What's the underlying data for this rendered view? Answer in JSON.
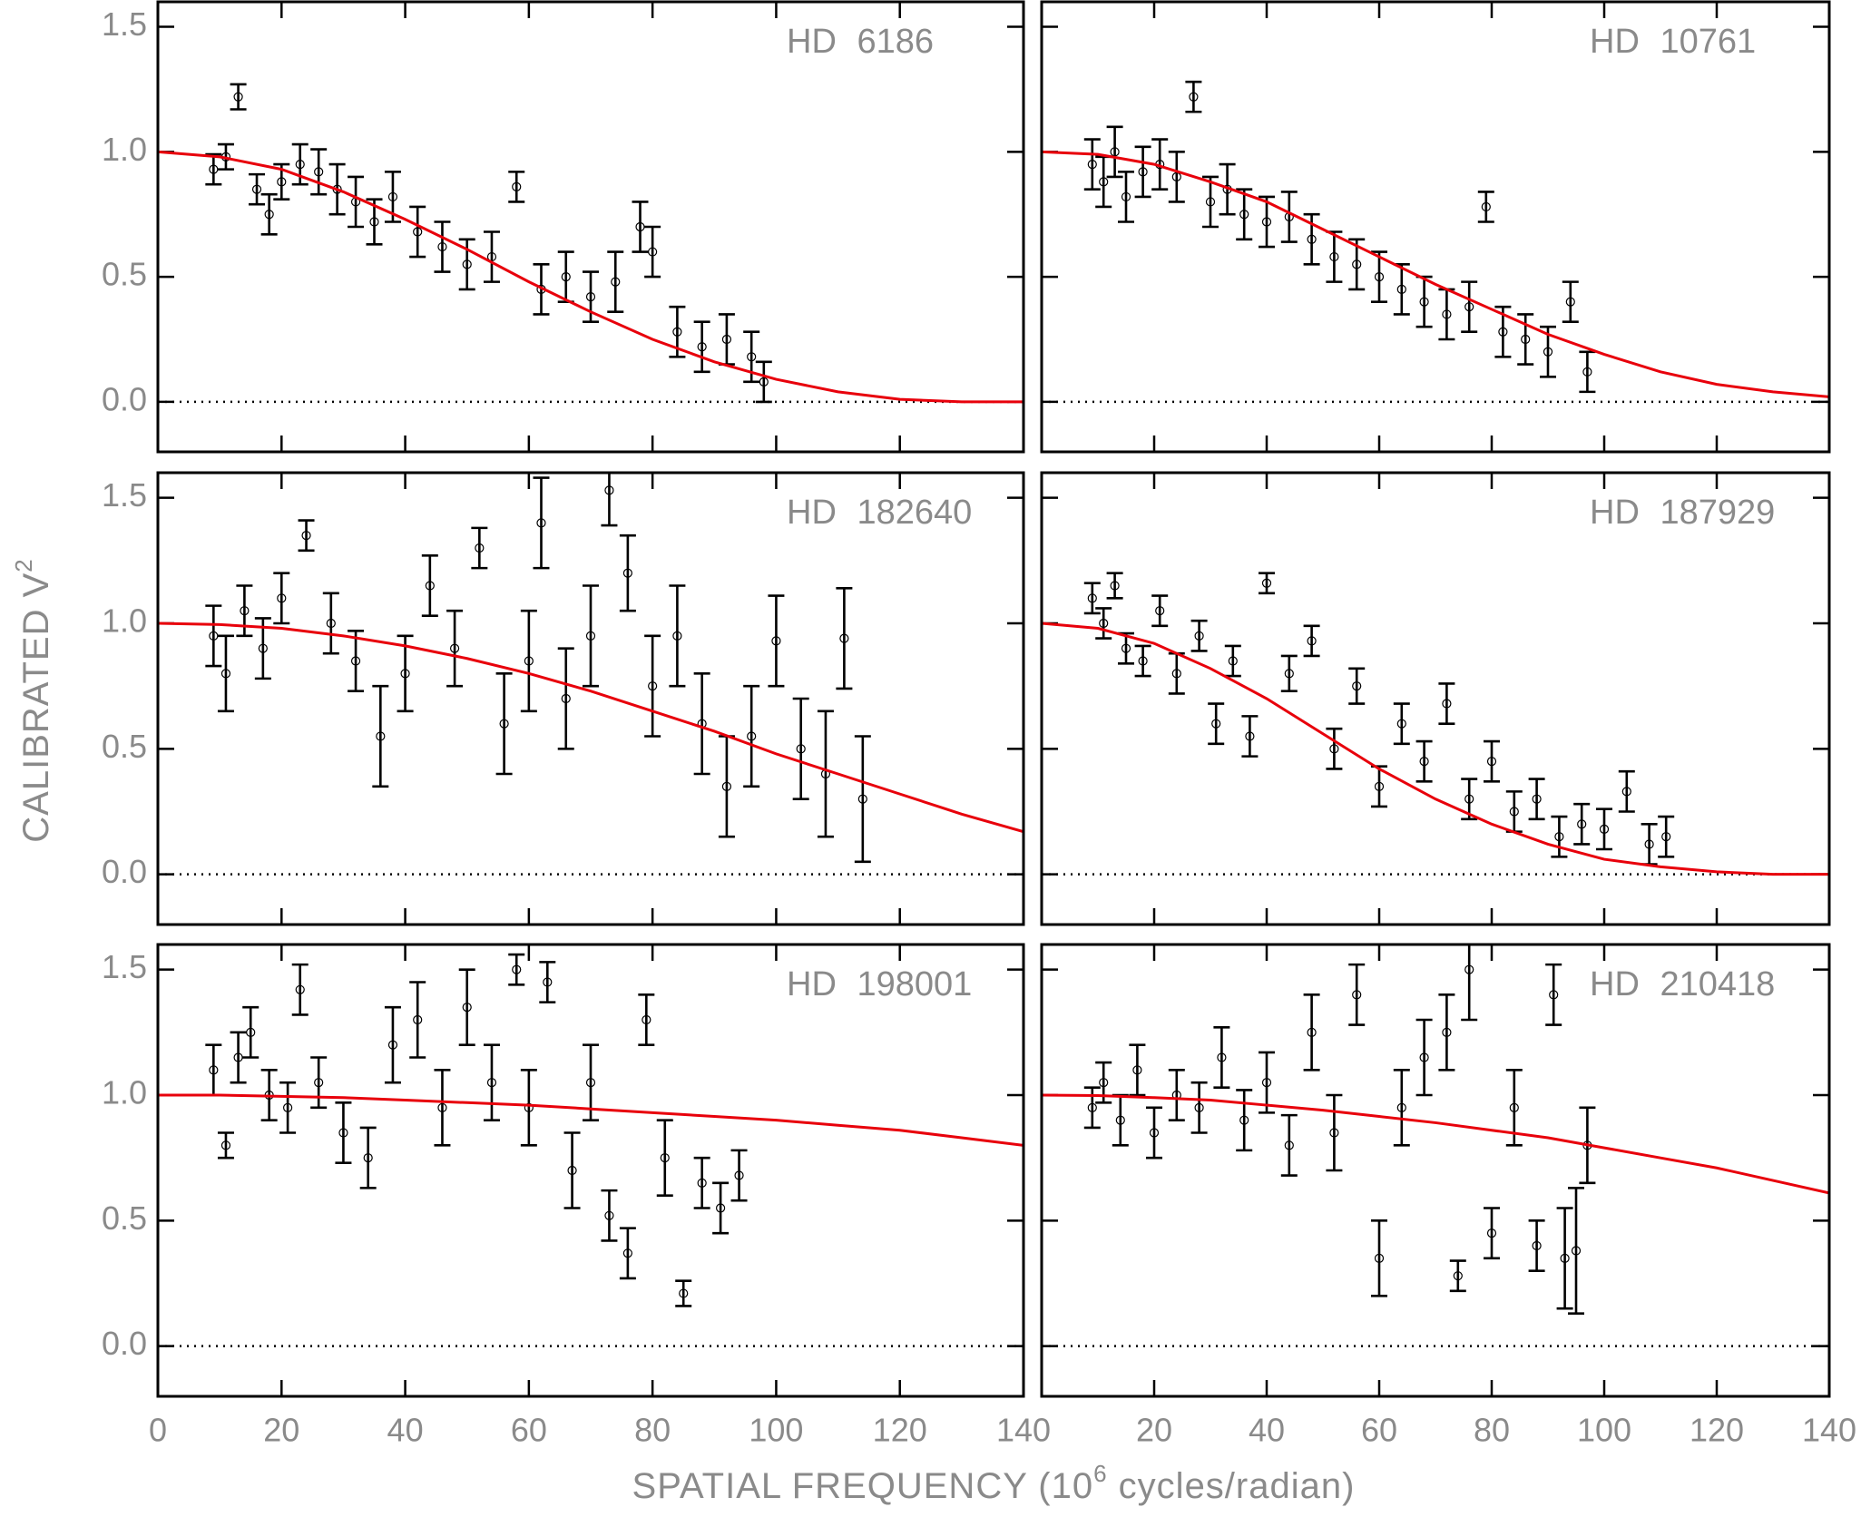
{
  "x_label": {
    "text": "SPATIAL FREQUENCY (10",
    "superscript": "6",
    "tail": " cycles/radian)"
  },
  "y_label": {
    "text": "CALIBRATED V",
    "superscript": "2"
  },
  "chart_data": [
    {
      "type": "scatter",
      "title": "HD 6186",
      "xlim": [
        0,
        140
      ],
      "ylim": [
        -0.2,
        1.6
      ],
      "xticks": [
        0,
        20,
        40,
        60,
        80,
        100,
        120,
        140
      ],
      "xtick_labels": false,
      "yticks": [
        {
          "value": 0,
          "label": "0.0"
        },
        0.5,
        {
          "value": 1,
          "label": "1.0"
        },
        1.5
      ],
      "ytick_labels": true,
      "zero_line": true,
      "color": "#000000",
      "x": [
        9,
        11,
        13,
        16,
        18,
        20,
        23,
        26,
        29,
        32,
        35,
        38,
        42,
        46,
        50,
        54,
        58,
        62,
        66,
        70,
        74,
        78,
        80,
        84,
        88,
        92,
        96,
        98
      ],
      "values": [
        0.93,
        0.98,
        1.22,
        0.85,
        0.75,
        0.88,
        0.95,
        0.92,
        0.85,
        0.8,
        0.72,
        0.82,
        0.68,
        0.62,
        0.55,
        0.58,
        0.86,
        0.45,
        0.5,
        0.42,
        0.48,
        0.7,
        0.6,
        0.28,
        0.22,
        0.25,
        0.18,
        0.08
      ],
      "errors": [
        0.06,
        0.05,
        0.05,
        0.06,
        0.08,
        0.07,
        0.08,
        0.09,
        0.1,
        0.1,
        0.09,
        0.1,
        0.1,
        0.1,
        0.1,
        0.1,
        0.06,
        0.1,
        0.1,
        0.1,
        0.12,
        0.1,
        0.1,
        0.1,
        0.1,
        0.1,
        0.1,
        0.08
      ],
      "fit": {
        "color": "#e8000b",
        "x": [
          0,
          10,
          20,
          30,
          40,
          50,
          60,
          70,
          80,
          90,
          100,
          110,
          120,
          130,
          140
        ],
        "values": [
          1.0,
          0.98,
          0.93,
          0.84,
          0.73,
          0.61,
          0.48,
          0.36,
          0.25,
          0.16,
          0.09,
          0.04,
          0.01,
          0.0,
          0.0
        ]
      }
    },
    {
      "type": "scatter",
      "title": "HD 10761",
      "xlim": [
        0,
        140
      ],
      "ylim": [
        -0.2,
        1.6
      ],
      "xticks": [
        20,
        40,
        60,
        80,
        100,
        120,
        140
      ],
      "xtick_labels": false,
      "yticks": [
        {
          "value": 0,
          "label": "0.0"
        },
        0.5,
        {
          "value": 1,
          "label": "1.0"
        },
        1.5
      ],
      "ytick_labels": false,
      "zero_line": true,
      "color": "#000000",
      "x": [
        9,
        11,
        13,
        15,
        18,
        21,
        24,
        27,
        30,
        33,
        36,
        40,
        44,
        48,
        52,
        56,
        60,
        64,
        68,
        72,
        76,
        79,
        82,
        86,
        90,
        94,
        97
      ],
      "values": [
        0.95,
        0.88,
        1.0,
        0.82,
        0.92,
        0.95,
        0.9,
        1.22,
        0.8,
        0.85,
        0.75,
        0.72,
        0.74,
        0.65,
        0.58,
        0.55,
        0.5,
        0.45,
        0.4,
        0.35,
        0.38,
        0.78,
        0.28,
        0.25,
        0.2,
        0.4,
        0.12
      ],
      "errors": [
        0.1,
        0.1,
        0.1,
        0.1,
        0.1,
        0.1,
        0.1,
        0.06,
        0.1,
        0.1,
        0.1,
        0.1,
        0.1,
        0.1,
        0.1,
        0.1,
        0.1,
        0.1,
        0.1,
        0.1,
        0.1,
        0.06,
        0.1,
        0.1,
        0.1,
        0.08,
        0.08
      ],
      "fit": {
        "color": "#e8000b",
        "x": [
          0,
          10,
          20,
          30,
          40,
          50,
          60,
          70,
          80,
          90,
          100,
          110,
          120,
          130,
          140
        ],
        "values": [
          1.0,
          0.99,
          0.95,
          0.88,
          0.8,
          0.69,
          0.58,
          0.47,
          0.37,
          0.27,
          0.19,
          0.12,
          0.07,
          0.04,
          0.02
        ]
      }
    },
    {
      "type": "scatter",
      "title": "HD 182640",
      "xlim": [
        0,
        140
      ],
      "ylim": [
        -0.2,
        1.6
      ],
      "xticks": [
        0,
        20,
        40,
        60,
        80,
        100,
        120,
        140
      ],
      "xtick_labels": false,
      "yticks": [
        {
          "value": 0,
          "label": "0.0"
        },
        0.5,
        {
          "value": 1,
          "label": "1.0"
        },
        1.5
      ],
      "ytick_labels": true,
      "zero_line": true,
      "color": "#000000",
      "x": [
        9,
        11,
        14,
        17,
        20,
        24,
        28,
        32,
        36,
        40,
        44,
        48,
        52,
        56,
        60,
        62,
        66,
        70,
        73,
        76,
        80,
        84,
        88,
        92,
        96,
        100,
        104,
        108,
        111,
        114
      ],
      "values": [
        0.95,
        0.8,
        1.05,
        0.9,
        1.1,
        1.35,
        1.0,
        0.85,
        0.55,
        0.8,
        1.15,
        0.9,
        1.3,
        0.6,
        0.85,
        1.4,
        0.7,
        0.95,
        1.53,
        1.2,
        0.75,
        0.95,
        0.6,
        0.35,
        0.55,
        0.93,
        0.5,
        0.4,
        0.94,
        0.3
      ],
      "errors": [
        0.12,
        0.15,
        0.1,
        0.12,
        0.1,
        0.06,
        0.12,
        0.12,
        0.2,
        0.15,
        0.12,
        0.15,
        0.08,
        0.2,
        0.2,
        0.18,
        0.2,
        0.2,
        0.14,
        0.15,
        0.2,
        0.2,
        0.2,
        0.2,
        0.2,
        0.18,
        0.2,
        0.25,
        0.2,
        0.25
      ],
      "fit": {
        "color": "#e8000b",
        "x": [
          0,
          10,
          20,
          30,
          40,
          50,
          60,
          70,
          80,
          90,
          100,
          110,
          120,
          130,
          140
        ],
        "values": [
          1.0,
          0.995,
          0.98,
          0.95,
          0.91,
          0.86,
          0.8,
          0.73,
          0.65,
          0.57,
          0.48,
          0.4,
          0.32,
          0.24,
          0.17
        ]
      }
    },
    {
      "type": "scatter",
      "title": "HD 187929",
      "xlim": [
        0,
        140
      ],
      "ylim": [
        -0.2,
        1.6
      ],
      "xticks": [
        20,
        40,
        60,
        80,
        100,
        120,
        140
      ],
      "xtick_labels": false,
      "yticks": [
        {
          "value": 0,
          "label": "0.0"
        },
        0.5,
        {
          "value": 1,
          "label": "1.0"
        },
        1.5
      ],
      "ytick_labels": false,
      "zero_line": true,
      "color": "#000000",
      "x": [
        9,
        11,
        13,
        15,
        18,
        21,
        24,
        28,
        31,
        34,
        37,
        40,
        44,
        48,
        52,
        56,
        60,
        64,
        68,
        72,
        76,
        80,
        84,
        88,
        92,
        96,
        100,
        104,
        108,
        111
      ],
      "values": [
        1.1,
        1.0,
        1.15,
        0.9,
        0.85,
        1.05,
        0.8,
        0.95,
        0.6,
        0.85,
        0.55,
        1.16,
        0.8,
        0.93,
        0.5,
        0.75,
        0.35,
        0.6,
        0.45,
        0.68,
        0.3,
        0.45,
        0.25,
        0.3,
        0.15,
        0.2,
        0.18,
        0.33,
        0.12,
        0.15
      ],
      "errors": [
        0.06,
        0.06,
        0.05,
        0.06,
        0.06,
        0.06,
        0.08,
        0.06,
        0.08,
        0.06,
        0.08,
        0.04,
        0.07,
        0.06,
        0.08,
        0.07,
        0.08,
        0.08,
        0.08,
        0.08,
        0.08,
        0.08,
        0.08,
        0.08,
        0.08,
        0.08,
        0.08,
        0.08,
        0.08,
        0.08
      ],
      "fit": {
        "color": "#e8000b",
        "x": [
          0,
          10,
          20,
          30,
          40,
          50,
          60,
          70,
          80,
          90,
          100,
          110,
          120,
          130,
          140
        ],
        "values": [
          1.0,
          0.98,
          0.92,
          0.82,
          0.7,
          0.56,
          0.42,
          0.3,
          0.2,
          0.12,
          0.06,
          0.03,
          0.01,
          0.0,
          0.0
        ]
      }
    },
    {
      "type": "scatter",
      "title": "HD 198001",
      "xlim": [
        0,
        140
      ],
      "ylim": [
        -0.2,
        1.6
      ],
      "xticks": [
        0,
        20,
        40,
        60,
        80,
        100,
        120,
        140
      ],
      "xtick_labels": true,
      "yticks": [
        {
          "value": 0,
          "label": "0.0"
        },
        0.5,
        {
          "value": 1,
          "label": "1.0"
        },
        1.5
      ],
      "ytick_labels": true,
      "zero_line": true,
      "color": "#000000",
      "x": [
        9,
        11,
        13,
        15,
        18,
        21,
        23,
        26,
        30,
        34,
        38,
        42,
        46,
        50,
        54,
        58,
        60,
        63,
        67,
        70,
        73,
        76,
        79,
        82,
        85,
        88,
        91,
        94
      ],
      "values": [
        1.1,
        0.8,
        1.15,
        1.25,
        1.0,
        0.95,
        1.42,
        1.05,
        0.85,
        0.75,
        1.2,
        1.3,
        0.95,
        1.35,
        1.05,
        1.5,
        0.95,
        1.45,
        0.7,
        1.05,
        0.52,
        0.37,
        1.3,
        0.75,
        0.21,
        0.65,
        0.55,
        0.68
      ],
      "errors": [
        0.1,
        0.05,
        0.1,
        0.1,
        0.1,
        0.1,
        0.1,
        0.1,
        0.12,
        0.12,
        0.15,
        0.15,
        0.15,
        0.15,
        0.15,
        0.06,
        0.15,
        0.08,
        0.15,
        0.15,
        0.1,
        0.1,
        0.1,
        0.15,
        0.05,
        0.1,
        0.1,
        0.1
      ],
      "fit": {
        "color": "#e8000b",
        "x": [
          0,
          10,
          20,
          30,
          40,
          50,
          60,
          70,
          80,
          90,
          100,
          110,
          120,
          130,
          140
        ],
        "values": [
          1.0,
          1.0,
          0.995,
          0.99,
          0.98,
          0.97,
          0.96,
          0.945,
          0.93,
          0.915,
          0.9,
          0.88,
          0.86,
          0.83,
          0.8
        ]
      }
    },
    {
      "type": "scatter",
      "title": "HD 210418",
      "xlim": [
        0,
        140
      ],
      "ylim": [
        -0.2,
        1.6
      ],
      "xticks": [
        20,
        40,
        60,
        80,
        100,
        120,
        140
      ],
      "xtick_labels": true,
      "yticks": [
        {
          "value": 0,
          "label": "0.0"
        },
        0.5,
        {
          "value": 1,
          "label": "1.0"
        },
        1.5
      ],
      "ytick_labels": false,
      "zero_line": true,
      "color": "#000000",
      "x": [
        9,
        11,
        14,
        17,
        20,
        24,
        28,
        32,
        36,
        40,
        44,
        48,
        52,
        56,
        60,
        64,
        68,
        72,
        74,
        76,
        80,
        84,
        88,
        91,
        93,
        95,
        97
      ],
      "values": [
        0.95,
        1.05,
        0.9,
        1.1,
        0.85,
        1.0,
        0.95,
        1.15,
        0.9,
        1.05,
        0.8,
        1.25,
        0.85,
        1.4,
        0.35,
        0.95,
        1.15,
        1.25,
        0.28,
        1.5,
        0.45,
        0.95,
        0.4,
        1.4,
        0.35,
        0.38,
        0.8
      ],
      "errors": [
        0.08,
        0.08,
        0.1,
        0.1,
        0.1,
        0.1,
        0.1,
        0.12,
        0.12,
        0.12,
        0.12,
        0.15,
        0.15,
        0.12,
        0.15,
        0.15,
        0.15,
        0.15,
        0.06,
        0.2,
        0.1,
        0.15,
        0.1,
        0.12,
        0.2,
        0.25,
        0.15
      ],
      "fit": {
        "color": "#e8000b",
        "x": [
          0,
          10,
          20,
          30,
          40,
          50,
          60,
          70,
          80,
          90,
          100,
          110,
          120,
          130,
          140
        ],
        "values": [
          1.0,
          0.998,
          0.99,
          0.98,
          0.96,
          0.94,
          0.915,
          0.89,
          0.86,
          0.83,
          0.79,
          0.75,
          0.71,
          0.66,
          0.61
        ]
      }
    }
  ]
}
